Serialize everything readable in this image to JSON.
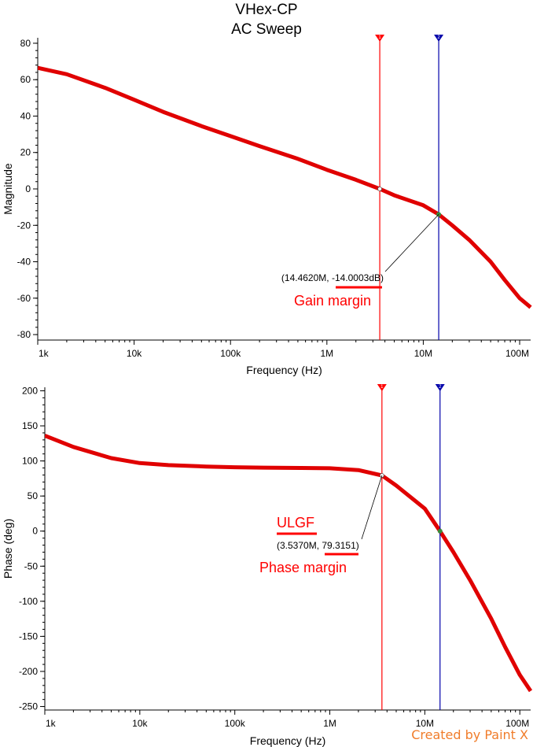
{
  "title": "VHex-CP",
  "subtitle": "AC Sweep",
  "watermark": "Created by Paint X",
  "chart_data": [
    {
      "type": "line",
      "xscale": "log",
      "xlim": [
        1000,
        130000000
      ],
      "ylim": [
        -83,
        83
      ],
      "xlabel": "Frequency (Hz)",
      "ylabel": "Magnitude",
      "x_ticks": [
        1000,
        10000,
        100000,
        1000000,
        10000000,
        100000000
      ],
      "x_tick_labels": [
        "1k",
        "10k",
        "100k",
        "1M",
        "10M",
        "100M"
      ],
      "y_ticks": [
        80,
        60,
        40,
        20,
        0,
        -20,
        -40,
        -60,
        -80
      ],
      "x": [
        1000,
        2000,
        5000,
        10000,
        20000,
        50000,
        100000,
        200000,
        500000,
        1000000,
        2000000,
        3537000,
        5000000,
        10000000,
        14462000,
        20000000,
        30000000,
        50000000,
        70000000,
        100000000,
        130000000
      ],
      "y": [
        66.5,
        63,
        55.5,
        49,
        42.3,
        34.5,
        29,
        23.5,
        16.5,
        10.5,
        5,
        0,
        -3.5,
        -9,
        -14,
        -20,
        -28,
        -40,
        -50,
        -60,
        -65
      ],
      "line_color": "#e00000",
      "cursors": [
        {
          "id": "1",
          "x": 3537000,
          "color": "#ff0000"
        },
        {
          "id": "2",
          "x": 14462000,
          "color": "#0000aa"
        }
      ],
      "annotation": {
        "text": "(14.4620M, -14.0003dB)",
        "x": 14462000,
        "y": -14
      },
      "callout": {
        "text": "Gain margin",
        "color": "#ff0000"
      }
    },
    {
      "type": "line",
      "xscale": "log",
      "xlim": [
        1000,
        130000000
      ],
      "ylim": [
        -255,
        205
      ],
      "xlabel": "Frequency (Hz)",
      "ylabel": "Phase (deg)",
      "x_ticks": [
        1000,
        10000,
        100000,
        1000000,
        10000000,
        100000000
      ],
      "x_tick_labels": [
        "1k",
        "10k",
        "100k",
        "1M",
        "10M",
        "100M"
      ],
      "y_ticks": [
        200,
        150,
        100,
        50,
        0,
        -50,
        -100,
        -150,
        -200,
        -250
      ],
      "x": [
        1000,
        2000,
        5000,
        10000,
        20000,
        50000,
        100000,
        200000,
        500000,
        1000000,
        2000000,
        3537000,
        5000000,
        10000000,
        14462000,
        20000000,
        30000000,
        50000000,
        70000000,
        100000000,
        130000000
      ],
      "y": [
        136,
        120,
        104,
        97,
        94,
        92,
        91,
        90.5,
        90,
        89.5,
        87,
        79.3,
        65,
        32,
        0,
        -30,
        -70,
        -125,
        -165,
        -205,
        -228
      ],
      "line_color": "#e00000",
      "cursors": [
        {
          "id": "1",
          "x": 3537000,
          "color": "#ff0000"
        },
        {
          "id": "2",
          "x": 14462000,
          "color": "#0000aa"
        }
      ],
      "annotation": {
        "text": "(3.5370M, 79.3151)",
        "x": 3537000,
        "y": 79.3
      },
      "callouts": [
        {
          "text": "ULGF",
          "color": "#ff0000"
        },
        {
          "text": "Phase margin",
          "color": "#ff0000"
        }
      ]
    }
  ]
}
